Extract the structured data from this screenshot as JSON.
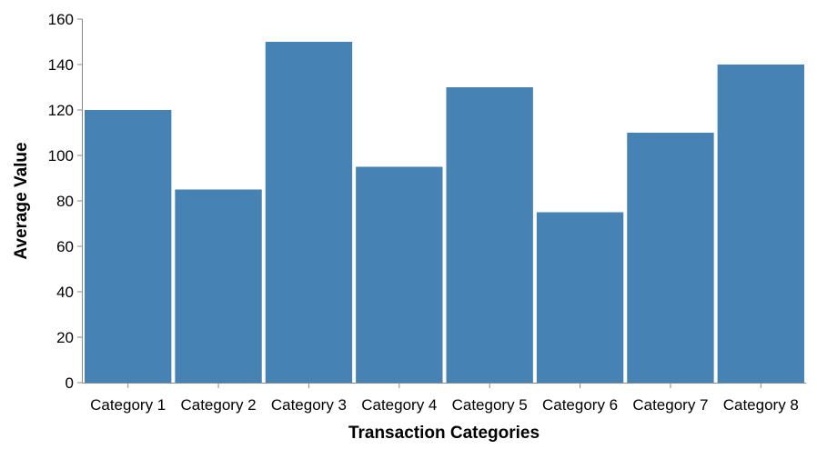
{
  "chart_data": {
    "type": "bar",
    "categories": [
      "Category 1",
      "Category 2",
      "Category 3",
      "Category 4",
      "Category 5",
      "Category 6",
      "Category 7",
      "Category 8"
    ],
    "values": [
      120,
      85,
      150,
      95,
      130,
      75,
      110,
      140
    ],
    "xlabel": "Transaction Categories",
    "ylabel": "Average Value",
    "ylim": [
      0,
      160
    ],
    "yticks": [
      0,
      20,
      40,
      60,
      80,
      100,
      120,
      140,
      160
    ],
    "grid": false,
    "colors": {
      "bar": "#4682b4",
      "axis": "#888888"
    }
  }
}
